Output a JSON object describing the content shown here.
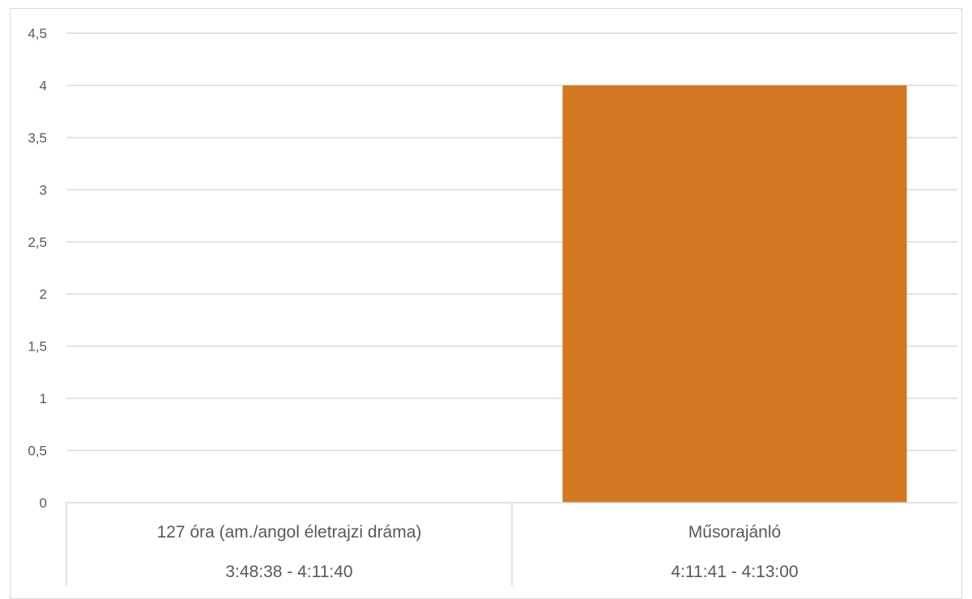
{
  "chart_data": {
    "type": "bar",
    "categories": [
      {
        "name": "127 óra (am./angol életrajzi dráma)",
        "time": "3:48:38 - 4:11:40"
      },
      {
        "name": "Műsorajánló",
        "time": "4:11:41 - 4:13:00"
      }
    ],
    "values": [
      0,
      4
    ],
    "ylim": [
      0,
      4.5
    ],
    "yticks": [
      "0",
      "0,5",
      "1",
      "1,5",
      "2",
      "2,5",
      "3",
      "3,5",
      "4",
      "4,5"
    ],
    "grid": true,
    "legend": "none",
    "bar_color": "#D27722",
    "grid_color": "#D9D9D9"
  }
}
